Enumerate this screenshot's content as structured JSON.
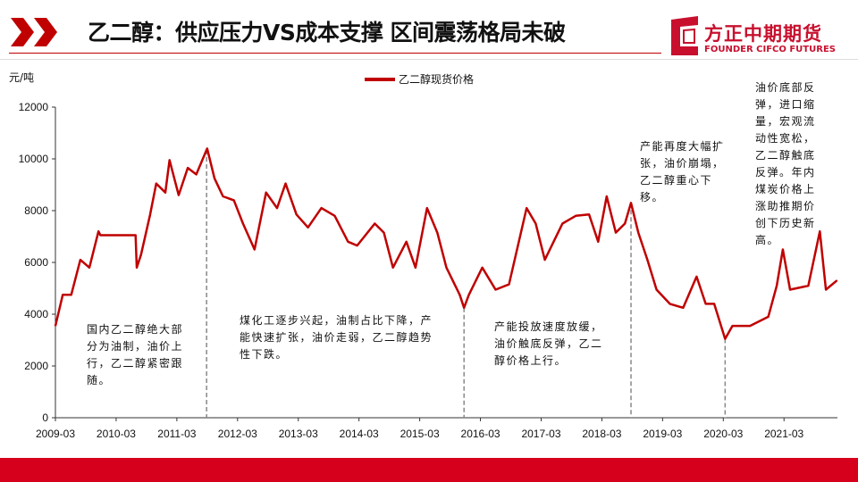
{
  "header": {
    "title": "乙二醇：供应压力VS成本支撑 区间震荡格局未破",
    "logo_cn": "方正中期期货",
    "logo_en": "FOUNDER CIFCO FUTURES"
  },
  "colors": {
    "accent": "#c00000",
    "footer": "#d6001c"
  },
  "chart_data": {
    "type": "line",
    "title": "",
    "ylabel": "元/吨",
    "xlabel": "",
    "ylim": [
      0,
      12000
    ],
    "yticks": [
      0,
      2000,
      4000,
      6000,
      8000,
      10000,
      12000
    ],
    "xlim": [
      2009.17,
      2022.05
    ],
    "xticks": [
      {
        "v": 2009.17,
        "label": "2009-03"
      },
      {
        "v": 2010.17,
        "label": "2010-03"
      },
      {
        "v": 2011.17,
        "label": "2011-03"
      },
      {
        "v": 2012.17,
        "label": "2012-03"
      },
      {
        "v": 2013.17,
        "label": "2013-03"
      },
      {
        "v": 2014.17,
        "label": "2014-03"
      },
      {
        "v": 2015.17,
        "label": "2015-03"
      },
      {
        "v": 2016.17,
        "label": "2016-03"
      },
      {
        "v": 2017.17,
        "label": "2017-03"
      },
      {
        "v": 2018.17,
        "label": "2018-03"
      },
      {
        "v": 2019.17,
        "label": "2019-03"
      },
      {
        "v": 2020.17,
        "label": "2020-03"
      },
      {
        "v": 2021.17,
        "label": "2021-03"
      }
    ],
    "legend": "top-center",
    "series": [
      {
        "name": "乙二醇现货价格",
        "color": "#c00000",
        "x": [
          2009.17,
          2009.29,
          2009.43,
          2009.58,
          2009.73,
          2009.88,
          2009.91,
          2010.49,
          2010.51,
          2010.58,
          2010.73,
          2010.83,
          2010.98,
          2011.05,
          2011.2,
          2011.35,
          2011.49,
          2011.67,
          2011.79,
          2011.93,
          2012.11,
          2012.26,
          2012.45,
          2012.64,
          2012.82,
          2012.96,
          2013.14,
          2013.33,
          2013.55,
          2013.77,
          2013.99,
          2014.14,
          2014.43,
          2014.58,
          2014.73,
          2014.95,
          2015.1,
          2015.29,
          2015.46,
          2015.61,
          2015.83,
          2015.9,
          2015.98,
          2016.2,
          2016.42,
          2016.64,
          2016.93,
          2017.08,
          2017.23,
          2017.52,
          2017.74,
          2017.96,
          2018.11,
          2018.25,
          2018.4,
          2018.55,
          2018.65,
          2018.77,
          2018.92,
          2019.07,
          2019.29,
          2019.51,
          2019.73,
          2019.88,
          2020.02,
          2020.2,
          2020.32,
          2020.61,
          2020.91,
          2021.05,
          2021.15,
          2021.27,
          2021.57,
          2021.76,
          2021.86,
          2022.04
        ],
        "y": [
          3550,
          4750,
          4750,
          6100,
          5800,
          7200,
          7050,
          7050,
          5800,
          6300,
          7850,
          9050,
          8700,
          9950,
          8600,
          9650,
          9400,
          10400,
          9250,
          8550,
          8400,
          7500,
          6500,
          8700,
          8100,
          9050,
          7850,
          7350,
          8100,
          7800,
          6800,
          6650,
          7500,
          7150,
          5800,
          6800,
          5800,
          8100,
          7150,
          5800,
          4750,
          4250,
          4750,
          5800,
          4950,
          5150,
          8100,
          7500,
          6100,
          7500,
          7800,
          7850,
          6800,
          8550,
          7150,
          7500,
          8300,
          7150,
          6100,
          4950,
          4400,
          4250,
          5450,
          4400,
          4400,
          3050,
          3550,
          3550,
          3900,
          5100,
          6500,
          4950,
          5100,
          7200,
          4950,
          5300
        ]
      }
    ],
    "markers": [
      2011.66,
      2015.9,
      2018.65,
      2020.2
    ],
    "annotations": [
      "国内乙二醇绝大部分为油制，油价上行，乙二醇紧密跟随。",
      "煤化工逐步兴起，油制占比下降，产能快速扩张，油价走弱，乙二醇趋势性下跌。",
      "产能投放速度放缓，油价触底反弹，乙二醇价格上行。",
      "产能再度大幅扩张，油价崩塌，乙二醇重心下移。",
      "油价底部反弹，进口缩量，宏观流动性宽松，乙二醇触底反弹。年内煤炭价格上涨助推期价创下历史新高。"
    ]
  }
}
